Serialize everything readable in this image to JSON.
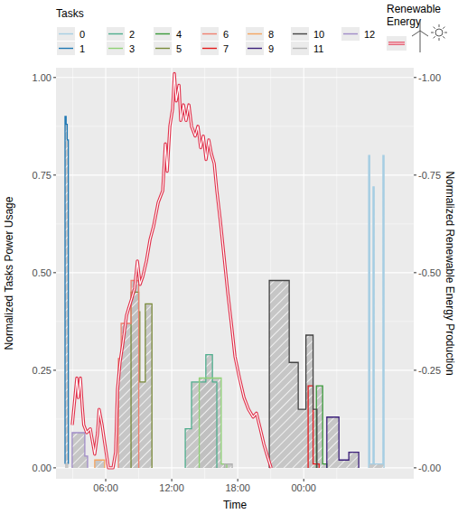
{
  "chart_data": {
    "type": "line",
    "xlabel": "Time",
    "ylabel": "Normalized Tasks Power Usage",
    "y2label": "Normalized Renewable Energy Production",
    "legend_title": "Tasks",
    "legend": "top",
    "grid": true,
    "xlim": [
      1.48,
      34.0
    ],
    "xticks": [
      {
        "value": 6,
        "label": "06:00"
      },
      {
        "value": 12,
        "label": "12:00"
      },
      {
        "value": 18,
        "label": "18:00"
      },
      {
        "value": 24,
        "label": "00:00"
      }
    ],
    "ylim": [
      -0.028,
      1.025
    ],
    "yticks": [
      {
        "value": 0,
        "label": "0.00"
      },
      {
        "value": 0.25,
        "label": "0.25"
      },
      {
        "value": 0.5,
        "label": "0.50"
      },
      {
        "value": 0.75,
        "label": "0.75"
      },
      {
        "value": 1,
        "label": "1.00"
      }
    ],
    "y2lim": [
      0.028,
      -1.025
    ],
    "y2ticks": [
      {
        "value": 0,
        "label": "-0.00"
      },
      {
        "value": -0.25,
        "label": "-0.25"
      },
      {
        "value": -0.5,
        "label": "-0.50"
      },
      {
        "value": -0.75,
        "label": "-0.75"
      },
      {
        "value": -1,
        "label": "-1.00"
      }
    ],
    "series": [
      {
        "name": "0",
        "color": "#a6cee3",
        "type": "area",
        "x": [
          29.9,
          29.9,
          30.0,
          30.0,
          30.3,
          30.3,
          30.4,
          30.4,
          31.2,
          31.2,
          31.3,
          31.3
        ],
        "values": [
          0,
          0.8,
          0.8,
          0.01,
          0.01,
          0.72,
          0.72,
          0.01,
          0.01,
          0.8,
          0.8,
          0
        ]
      },
      {
        "name": "1",
        "color": "#1f78b4",
        "type": "area",
        "x": [
          2.3,
          2.3,
          2.4,
          2.4,
          2.5,
          2.5,
          2.6,
          2.6
        ],
        "values": [
          0.01,
          0.9,
          0.9,
          0.88,
          0.88,
          0.84,
          0.84,
          0.01
        ]
      },
      {
        "name": "2",
        "color": "#4fae8e",
        "type": "area",
        "x": [
          13.23,
          13.23,
          13.8,
          13.8,
          15.1,
          15.1,
          15.7,
          15.7,
          16.1,
          16.1
        ],
        "values": [
          0,
          0.1,
          0.1,
          0.22,
          0.22,
          0.29,
          0.29,
          0.22,
          0.22,
          0
        ]
      },
      {
        "name": "3",
        "color": "#8fd175",
        "type": "area",
        "x": [
          14.5,
          14.5,
          16.5,
          16.5,
          17.0,
          17.0
        ],
        "values": [
          0,
          0.23,
          0.23,
          0.01,
          0.01,
          0
        ]
      },
      {
        "name": "4",
        "color": "#3a9a3a",
        "type": "area",
        "x": [
          25.15,
          25.15,
          25.72,
          25.72,
          26.1,
          26.1
        ],
        "values": [
          0,
          0.21,
          0.21,
          0.01,
          0.01,
          0
        ]
      },
      {
        "name": "5",
        "color": "#7a8a3a",
        "type": "area",
        "x": [
          8.3,
          8.3,
          9.0,
          9.0,
          9.1,
          9.1,
          9.6,
          9.6,
          10.2,
          10.2
        ],
        "values": [
          0,
          0.45,
          0.45,
          0.4,
          0.4,
          0.22,
          0.22,
          0.42,
          0.42,
          0
        ]
      },
      {
        "name": "6",
        "color": "#f08070",
        "type": "area",
        "x": [
          7.15,
          7.15,
          7.4,
          7.4,
          8.3,
          8.3,
          9.0,
          9.0
        ],
        "values": [
          0,
          0.28,
          0.28,
          0.37,
          0.37,
          0.48,
          0.48,
          0
        ]
      },
      {
        "name": "7",
        "color": "#e31a1c",
        "type": "area",
        "x": [
          24.4,
          24.4,
          24.85,
          24.85,
          25.4,
          25.4
        ],
        "values": [
          0,
          0.21,
          0.21,
          0.01,
          0.01,
          0
        ]
      },
      {
        "name": "8",
        "color": "#f4a460",
        "type": "area",
        "x": [
          5.0,
          5.0,
          5.9,
          5.9
        ],
        "values": [
          0,
          0.02,
          0.02,
          0
        ]
      },
      {
        "name": "9",
        "color": "#3b1f7a",
        "type": "area",
        "x": [
          26.1,
          26.1,
          27.2,
          27.2,
          28.1,
          28.1,
          29.0,
          29.0
        ],
        "values": [
          0,
          0.13,
          0.13,
          0.02,
          0.02,
          0.04,
          0.04,
          0
        ]
      },
      {
        "name": "10",
        "color": "#444444",
        "type": "area",
        "x": [
          20.87,
          20.87,
          22.68,
          22.68,
          23.5,
          23.5,
          24.2,
          24.2,
          24.85,
          24.85,
          25.2,
          25.2
        ],
        "values": [
          0,
          0.48,
          0.48,
          0.27,
          0.27,
          0.15,
          0.15,
          0.34,
          0.34,
          0.15,
          0.15,
          0
        ]
      },
      {
        "name": "11",
        "color": "#b0b0b0",
        "type": "area",
        "x": [
          16.8,
          16.8,
          17.5,
          17.5
        ],
        "values": [
          0,
          0.01,
          0.01,
          0
        ]
      },
      {
        "name": "12",
        "color": "#a08cc8",
        "type": "area",
        "x": [
          2.95,
          2.95,
          4.1,
          4.1,
          4.35,
          4.35
        ],
        "values": [
          0,
          0.09,
          0.09,
          0.03,
          0.03,
          0
        ]
      },
      {
        "name": "Renewable Energy",
        "color": "#e0304a",
        "type": "line",
        "axis": "y2",
        "x": [
          2.96,
          3.2,
          3.37,
          3.5,
          3.7,
          3.86,
          4.0,
          4.27,
          4.6,
          5.0,
          5.26,
          5.4,
          5.67,
          5.9,
          6.25,
          6.66,
          6.9,
          7.07,
          7.3,
          7.56,
          7.89,
          8.1,
          8.38,
          8.63,
          8.88,
          9.12,
          9.37,
          9.7,
          10.03,
          10.36,
          10.77,
          11.18,
          11.42,
          11.59,
          11.83,
          12.08,
          12.24,
          12.41,
          12.66,
          12.82,
          13.07,
          13.3,
          13.56,
          13.8,
          14.13,
          14.38,
          14.63,
          14.87,
          15.12,
          15.37,
          15.6,
          15.86,
          16.1,
          16.43,
          16.76,
          17.09,
          17.42,
          17.75,
          18.16,
          18.57,
          18.98,
          19.4,
          19.7,
          20.05,
          20.38,
          20.7,
          21.04
        ],
        "values": [
          -0.11,
          -0.18,
          -0.23,
          -0.18,
          -0.23,
          -0.16,
          -0.11,
          -0.09,
          -0.1,
          -0.035,
          -0.09,
          -0.15,
          -0.11,
          -0.065,
          0,
          0,
          -0.04,
          -0.2,
          -0.27,
          -0.32,
          -0.39,
          -0.41,
          -0.435,
          -0.46,
          -0.53,
          -0.47,
          -0.49,
          -0.53,
          -0.585,
          -0.62,
          -0.68,
          -0.71,
          -0.83,
          -0.76,
          -0.875,
          -0.92,
          -1.01,
          -0.94,
          -0.98,
          -0.89,
          -0.93,
          -0.89,
          -0.93,
          -0.875,
          -0.85,
          -0.875,
          -0.82,
          -0.85,
          -0.79,
          -0.84,
          -0.805,
          -0.78,
          -0.71,
          -0.63,
          -0.54,
          -0.45,
          -0.37,
          -0.285,
          -0.23,
          -0.18,
          -0.15,
          -0.13,
          -0.14,
          -0.1,
          -0.06,
          -0.03,
          0
        ]
      }
    ]
  }
}
